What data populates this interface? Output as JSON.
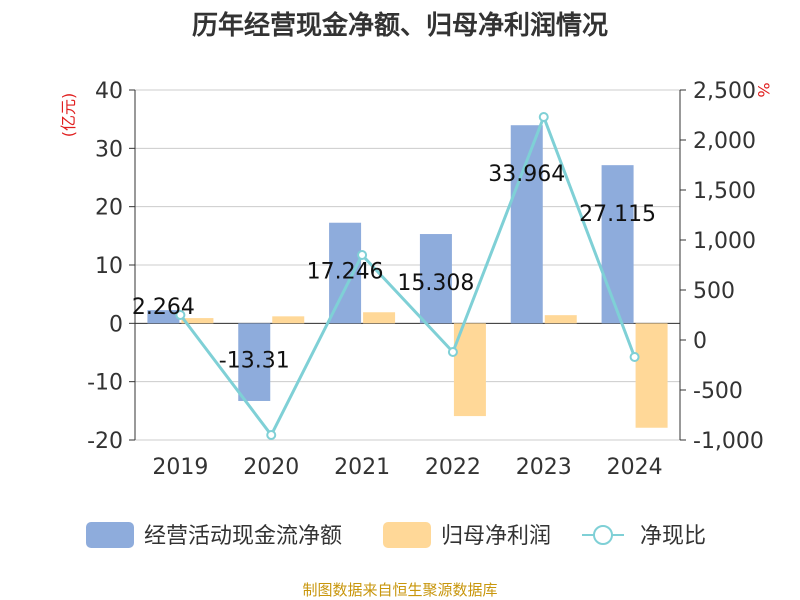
{
  "chart_data": {
    "type": "bar",
    "title": "历年经营现金净额、归母净利润情况",
    "categories": [
      "2019",
      "2020",
      "2021",
      "2022",
      "2023",
      "2024"
    ],
    "y_left": {
      "unit": "(亿元)",
      "ylim": [
        -20,
        40
      ],
      "ticks": [
        40,
        30,
        20,
        10,
        0,
        -10,
        -20
      ]
    },
    "y_right": {
      "unit": "%",
      "ylim": [
        -1000,
        2500
      ],
      "ticks": [
        "2,500",
        "2,000",
        "1,500",
        "1,000",
        "500",
        "0",
        "-500",
        "-1,000"
      ],
      "tick_values": [
        2500,
        2000,
        1500,
        1000,
        500,
        0,
        -500,
        -1000
      ]
    },
    "series": [
      {
        "name": "经营活动现金流净额",
        "type": "bar",
        "axis": "left",
        "color": "#8eacdc",
        "values": [
          2.264,
          -13.31,
          17.246,
          15.308,
          33.964,
          27.115
        ],
        "labels": [
          "2.264",
          "-13.31",
          "17.246",
          "15.308",
          "33.964",
          "27.115"
        ]
      },
      {
        "name": "归母净利润",
        "type": "bar",
        "axis": "left",
        "color": "#ffd898",
        "values": [
          0.9,
          1.2,
          1.9,
          -15.9,
          1.4,
          -17.9
        ]
      },
      {
        "name": "净现比",
        "type": "line",
        "axis": "right",
        "color": "#7fd0d6",
        "values": [
          250,
          -950,
          850,
          -120,
          2230,
          -170
        ]
      }
    ]
  },
  "legend": {
    "items": [
      {
        "name": "经营活动现金流净额",
        "type": "bar",
        "color": "#8eacdc"
      },
      {
        "name": "归母净利润",
        "type": "bar",
        "color": "#ffd898"
      },
      {
        "name": "净现比",
        "type": "line",
        "color": "#7fd0d6"
      }
    ]
  },
  "source": "制图数据来自恒生聚源数据库"
}
